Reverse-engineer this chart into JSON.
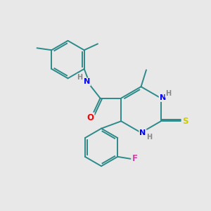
{
  "background_color": "#e8e8e8",
  "bond_color": "#2d8a8a",
  "atom_colors": {
    "N": "#0000ff",
    "O": "#ff0000",
    "S": "#cccc00",
    "F": "#cc44aa",
    "H": "#888888",
    "C": "#2d8a8a"
  },
  "figsize": [
    3.0,
    3.0
  ],
  "dpi": 100
}
